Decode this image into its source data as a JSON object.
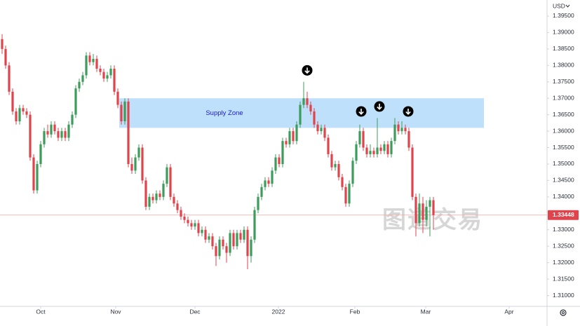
{
  "chart_data": {
    "type": "candlestick",
    "currency": "USD",
    "watermark": "图道交易",
    "up_color": "#3d9c5a",
    "down_color": "#df434b",
    "open": [
      1.388,
      1.385,
      1.38,
      1.372,
      1.366,
      1.363,
      1.367,
      1.366,
      1.365,
      1.352,
      1.342,
      1.35,
      1.356,
      1.36,
      1.359,
      1.362,
      1.36,
      1.358,
      1.36,
      1.358,
      1.362,
      1.365,
      1.373,
      1.375,
      1.377,
      1.383,
      1.381,
      1.382,
      1.379,
      1.378,
      1.376,
      1.377,
      1.379,
      1.372,
      1.368,
      1.363,
      1.369,
      1.35,
      1.348,
      1.352,
      1.355,
      1.345,
      1.337,
      1.34,
      1.339,
      1.341,
      1.34,
      1.344,
      1.349,
      1.34,
      1.338,
      1.336,
      1.334,
      1.333,
      1.332,
      1.331,
      1.332,
      1.329,
      1.33,
      1.327,
      1.328,
      1.325,
      1.322,
      1.327,
      1.325,
      1.323,
      1.329,
      1.325,
      1.329,
      1.327,
      1.33,
      1.322,
      1.327,
      1.336,
      1.34,
      1.343,
      1.345,
      1.344,
      1.348,
      1.352,
      1.35,
      1.357,
      1.356,
      1.36,
      1.357,
      1.362,
      1.368,
      1.37,
      1.368,
      1.366,
      1.362,
      1.36,
      1.361,
      1.358,
      1.353,
      1.349,
      1.35,
      1.346,
      1.343,
      1.338,
      1.344,
      1.351,
      1.356,
      1.36,
      1.355,
      1.353,
      1.354,
      1.353,
      1.355,
      1.354,
      1.356,
      1.353,
      1.357,
      1.362,
      1.36,
      1.361,
      1.36,
      1.355,
      1.34,
      1.332,
      1.338,
      1.333,
      1.337,
      1.339
    ],
    "high": [
      1.3895,
      1.386,
      1.381,
      1.373,
      1.367,
      1.368,
      1.368,
      1.367,
      1.366,
      1.353,
      1.351,
      1.357,
      1.361,
      1.362,
      1.363,
      1.363,
      1.361,
      1.361,
      1.361,
      1.363,
      1.366,
      1.374,
      1.376,
      1.378,
      1.384,
      1.384,
      1.3835,
      1.383,
      1.38,
      1.379,
      1.378,
      1.38,
      1.38,
      1.373,
      1.369,
      1.37,
      1.37,
      1.352,
      1.353,
      1.356,
      1.356,
      1.346,
      1.341,
      1.341,
      1.342,
      1.342,
      1.345,
      1.35,
      1.35,
      1.341,
      1.339,
      1.337,
      1.335,
      1.334,
      1.333,
      1.333,
      1.333,
      1.331,
      1.331,
      1.329,
      1.329,
      1.326,
      1.328,
      1.328,
      1.326,
      1.33,
      1.33,
      1.33,
      1.33,
      1.331,
      1.331,
      1.328,
      1.337,
      1.341,
      1.344,
      1.346,
      1.346,
      1.349,
      1.353,
      1.353,
      1.358,
      1.358,
      1.361,
      1.361,
      1.363,
      1.369,
      1.375,
      1.372,
      1.369,
      1.367,
      1.363,
      1.362,
      1.362,
      1.359,
      1.354,
      1.351,
      1.351,
      1.347,
      1.344,
      1.345,
      1.352,
      1.357,
      1.362,
      1.361,
      1.356,
      1.356,
      1.355,
      1.364,
      1.356,
      1.357,
      1.357,
      1.358,
      1.364,
      1.363,
      1.363,
      1.362,
      1.361,
      1.356,
      1.341,
      1.341,
      1.34,
      1.339,
      1.34,
      1.34
    ],
    "low": [
      1.3835,
      1.379,
      1.371,
      1.365,
      1.362,
      1.362,
      1.365,
      1.364,
      1.351,
      1.341,
      1.341,
      1.349,
      1.355,
      1.358,
      1.358,
      1.359,
      1.357,
      1.357,
      1.357,
      1.357,
      1.361,
      1.364,
      1.372,
      1.374,
      1.376,
      1.38,
      1.38,
      1.378,
      1.377,
      1.375,
      1.375,
      1.376,
      1.371,
      1.367,
      1.362,
      1.362,
      1.349,
      1.347,
      1.347,
      1.351,
      1.344,
      1.336,
      1.336,
      1.338,
      1.338,
      1.339,
      1.339,
      1.343,
      1.339,
      1.337,
      1.335,
      1.333,
      1.332,
      1.331,
      1.33,
      1.33,
      1.328,
      1.328,
      1.326,
      1.326,
      1.324,
      1.319,
      1.321,
      1.324,
      1.32,
      1.322,
      1.324,
      1.324,
      1.326,
      1.326,
      1.318,
      1.32,
      1.326,
      1.335,
      1.339,
      1.342,
      1.343,
      1.343,
      1.347,
      1.349,
      1.349,
      1.355,
      1.355,
      1.356,
      1.356,
      1.361,
      1.367,
      1.367,
      1.365,
      1.361,
      1.359,
      1.359,
      1.357,
      1.352,
      1.348,
      1.348,
      1.345,
      1.342,
      1.337,
      1.337,
      1.343,
      1.35,
      1.355,
      1.354,
      1.352,
      1.352,
      1.352,
      1.352,
      1.353,
      1.353,
      1.352,
      1.352,
      1.356,
      1.359,
      1.359,
      1.359,
      1.354,
      1.339,
      1.328,
      1.331,
      1.329,
      1.331,
      1.328,
      1.33
    ],
    "close": [
      1.385,
      1.38,
      1.372,
      1.366,
      1.363,
      1.367,
      1.366,
      1.365,
      1.352,
      1.342,
      1.35,
      1.356,
      1.36,
      1.359,
      1.362,
      1.36,
      1.358,
      1.36,
      1.358,
      1.362,
      1.365,
      1.373,
      1.375,
      1.377,
      1.383,
      1.381,
      1.382,
      1.379,
      1.378,
      1.376,
      1.377,
      1.379,
      1.372,
      1.368,
      1.363,
      1.369,
      1.35,
      1.348,
      1.352,
      1.355,
      1.345,
      1.337,
      1.34,
      1.339,
      1.341,
      1.34,
      1.344,
      1.349,
      1.34,
      1.338,
      1.336,
      1.334,
      1.333,
      1.332,
      1.331,
      1.332,
      1.329,
      1.33,
      1.327,
      1.328,
      1.325,
      1.322,
      1.327,
      1.325,
      1.323,
      1.329,
      1.325,
      1.329,
      1.327,
      1.33,
      1.322,
      1.327,
      1.336,
      1.34,
      1.343,
      1.345,
      1.344,
      1.348,
      1.352,
      1.35,
      1.357,
      1.356,
      1.36,
      1.357,
      1.362,
      1.368,
      1.37,
      1.368,
      1.366,
      1.362,
      1.36,
      1.361,
      1.358,
      1.353,
      1.349,
      1.35,
      1.346,
      1.343,
      1.338,
      1.344,
      1.351,
      1.356,
      1.36,
      1.355,
      1.353,
      1.354,
      1.353,
      1.355,
      1.354,
      1.356,
      1.353,
      1.357,
      1.362,
      1.36,
      1.361,
      1.36,
      1.355,
      1.34,
      1.332,
      1.338,
      1.333,
      1.337,
      1.339,
      1.33448
    ],
    "last_price": {
      "value": 1.33448,
      "label": "1.33448"
    },
    "zone": {
      "label": "Supply Zone",
      "low": 1.361,
      "high": 1.37,
      "start": 33.4,
      "end": 137.4,
      "color": "#bfe0fa"
    },
    "arrows": [
      {
        "x": 87,
        "y": 1.3785
      },
      {
        "x": 102.4,
        "y": 1.366
      },
      {
        "x": 107.6,
        "y": 1.3675
      },
      {
        "x": 115.8,
        "y": 1.366
      }
    ],
    "xlim": [
      -0.6,
      155.4
    ],
    "ylim": [
      1.3067,
      1.3999
    ],
    "xticks": [
      {
        "value": 11,
        "label": "Oct"
      },
      {
        "value": 32.4,
        "label": "Nov"
      },
      {
        "value": 55,
        "label": "Dec"
      },
      {
        "value": 78.8,
        "label": "2022"
      },
      {
        "value": 100.6,
        "label": "Feb"
      },
      {
        "value": 120.8,
        "label": "Mar"
      },
      {
        "value": 144.6,
        "label": "Apr"
      }
    ],
    "yticks": [
      {
        "value": 1.395,
        "label": "1.39500"
      },
      {
        "value": 1.39,
        "label": "1.39000"
      },
      {
        "value": 1.385,
        "label": "1.38500"
      },
      {
        "value": 1.38,
        "label": "1.38000"
      },
      {
        "value": 1.375,
        "label": "1.37500"
      },
      {
        "value": 1.37,
        "label": "1.37000"
      },
      {
        "value": 1.365,
        "label": "1.36500"
      },
      {
        "value": 1.36,
        "label": "1.36000"
      },
      {
        "value": 1.355,
        "label": "1.35500"
      },
      {
        "value": 1.35,
        "label": "1.35000"
      },
      {
        "value": 1.345,
        "label": "1.34500"
      },
      {
        "value": 1.34,
        "label": "1.34000"
      },
      {
        "value": 1.33,
        "label": "1.33000"
      },
      {
        "value": 1.325,
        "label": "1.32500"
      },
      {
        "value": 1.32,
        "label": "1.32000"
      },
      {
        "value": 1.315,
        "label": "1.31500"
      },
      {
        "value": 1.31,
        "label": "1.31000"
      }
    ]
  }
}
